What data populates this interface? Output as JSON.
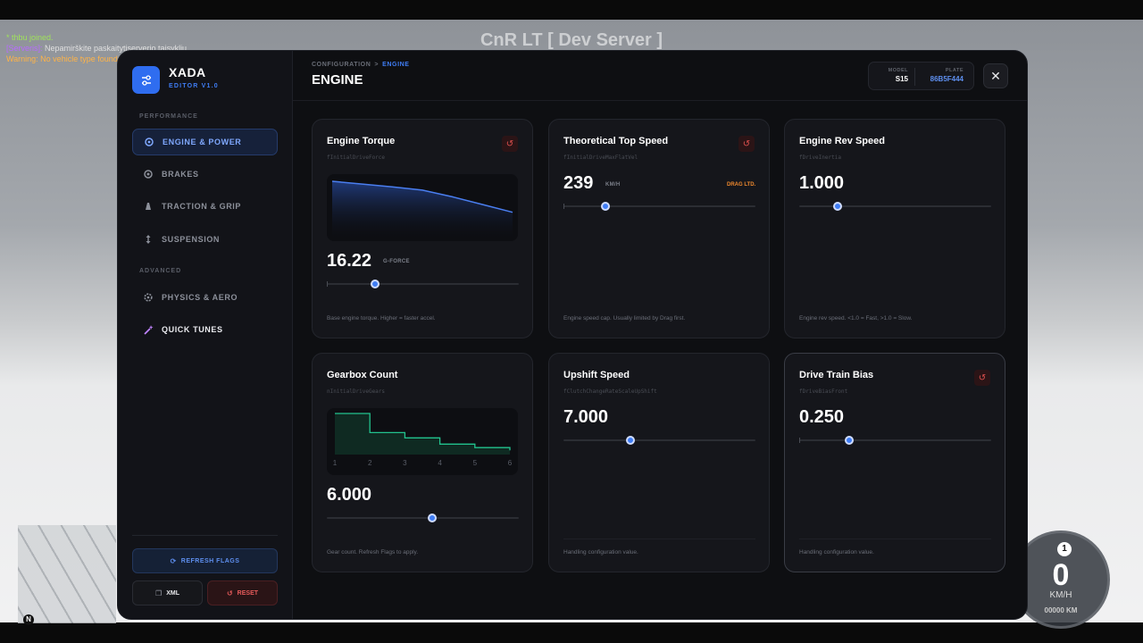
{
  "game": {
    "server_title": "CnR LT [ Dev Server ]",
    "chat": {
      "line1": "* thbu joined.",
      "line2_tag": "[Serveris]:",
      "line2_text": " Nepamirškite paskaitytiserverio taisykliu",
      "line3": "Warning: No vehicle type found"
    },
    "speedometer": {
      "gear": "1",
      "speed": "0",
      "unit": "KM/H",
      "odometer": "00000 KM"
    },
    "minimap_north": "N"
  },
  "app": {
    "name": "XADA",
    "version": "EDITOR V1.0",
    "accent": "#3f7df5"
  },
  "sidebar": {
    "performance_label": "PERFORMANCE",
    "advanced_label": "ADVANCED",
    "items": [
      {
        "label": "ENGINE & POWER",
        "icon": "engine-icon"
      },
      {
        "label": "BRAKES",
        "icon": "brakes-icon"
      },
      {
        "label": "TRACTION & GRIP",
        "icon": "traction-icon"
      },
      {
        "label": "SUSPENSION",
        "icon": "suspension-icon"
      },
      {
        "label": "PHYSICS & AERO",
        "icon": "physics-icon"
      },
      {
        "label": "QUICK TUNES",
        "icon": "wand-icon"
      }
    ],
    "refresh_label": "REFRESH FLAGS",
    "xml_label": "XML",
    "reset_label": "RESET"
  },
  "header": {
    "breadcrumb_parent": "CONFIGURATION",
    "breadcrumb_sep": ">",
    "breadcrumb_current": "ENGINE",
    "title": "ENGINE",
    "model_label": "MODEL",
    "model_value": "S15",
    "plate_label": "PLATE",
    "plate_value": "86B5F444"
  },
  "cards": [
    {
      "title": "Engine Torque",
      "var": "fInitialDriveForce",
      "value": "16.22",
      "unit": "G-FORCE",
      "slider": 0.25,
      "desc": "Base engine torque. Higher = faster accel.",
      "curve": [
        1.0,
        0.95,
        0.9,
        0.84,
        0.72,
        0.58,
        0.44
      ]
    },
    {
      "title": "Theoretical Top Speed",
      "var": "fInitialDriveMaxFlatVel",
      "value": "239",
      "unit": "KM/H",
      "badge": "DRAG LTD.",
      "slider": 0.22,
      "desc": "Engine speed cap. Usually limited by Drag first."
    },
    {
      "title": "Engine Rev Speed",
      "var": "fDriveInertia",
      "value": "1.000",
      "slider": 0.2,
      "desc": "Engine rev speed. <1.0 = Fast, >1.0 = Slow."
    },
    {
      "title": "Gearbox Count",
      "var": "nInitialDriveGears",
      "value": "6.000",
      "slider": 0.55,
      "desc": "Gear count. Refresh Flags to apply.",
      "gear_steps": [
        1.0,
        0.45,
        0.3,
        0.12,
        0.02,
        -0.06
      ],
      "gear_labels": [
        "1",
        "2",
        "3",
        "4",
        "5",
        "6"
      ]
    },
    {
      "title": "Upshift Speed",
      "var": "fClutchChangeRateScaleUpShift",
      "value": "7.000",
      "slider": 0.35,
      "desc": "Handling configuration value."
    },
    {
      "title": "Drive Train Bias",
      "var": "fDriveBiasFront",
      "value": "0.250",
      "slider": 0.26,
      "desc": "Handling configuration value."
    }
  ]
}
